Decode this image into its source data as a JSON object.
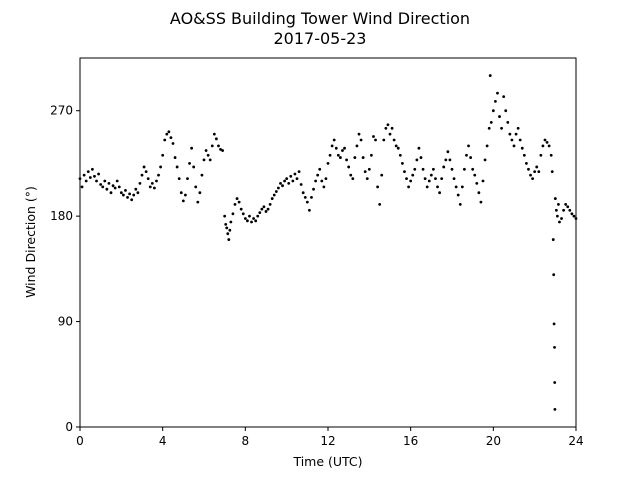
{
  "chart_data": {
    "type": "scatter",
    "title": "AO&SS Building Tower Wind Direction",
    "subtitle": "2017-05-23",
    "xlabel": "Time (UTC)",
    "ylabel": "Wind Direction (°)",
    "xlim": [
      0,
      24
    ],
    "ylim": [
      0,
      315
    ],
    "xticks": [
      0,
      4,
      8,
      12,
      16,
      20,
      24
    ],
    "yticks": [
      0,
      90,
      180,
      270
    ],
    "grid": false,
    "marker_color": "#000000",
    "series": [
      {
        "points": [
          [
            0.0,
            212
          ],
          [
            0.1,
            205
          ],
          [
            0.2,
            215
          ],
          [
            0.3,
            210
          ],
          [
            0.4,
            218
          ],
          [
            0.5,
            213
          ],
          [
            0.6,
            220
          ],
          [
            0.7,
            214
          ],
          [
            0.8,
            210
          ],
          [
            0.9,
            216
          ],
          [
            1.0,
            207
          ],
          [
            1.1,
            205
          ],
          [
            1.2,
            210
          ],
          [
            1.3,
            203
          ],
          [
            1.4,
            208
          ],
          [
            1.5,
            200
          ],
          [
            1.6,
            206
          ],
          [
            1.7,
            204
          ],
          [
            1.8,
            210
          ],
          [
            1.9,
            205
          ],
          [
            2.0,
            200
          ],
          [
            2.1,
            198
          ],
          [
            2.2,
            202
          ],
          [
            2.3,
            196
          ],
          [
            2.4,
            199
          ],
          [
            2.5,
            194
          ],
          [
            2.6,
            198
          ],
          [
            2.7,
            203
          ],
          [
            2.8,
            200
          ],
          [
            2.9,
            208
          ],
          [
            3.0,
            215
          ],
          [
            3.1,
            222
          ],
          [
            3.2,
            218
          ],
          [
            3.3,
            212
          ],
          [
            3.4,
            205
          ],
          [
            3.5,
            208
          ],
          [
            3.6,
            204
          ],
          [
            3.7,
            210
          ],
          [
            3.8,
            215
          ],
          [
            3.9,
            222
          ],
          [
            4.0,
            232
          ],
          [
            4.1,
            245
          ],
          [
            4.2,
            250
          ],
          [
            4.3,
            252
          ],
          [
            4.4,
            247
          ],
          [
            4.5,
            242
          ],
          [
            4.6,
            230
          ],
          [
            4.7,
            222
          ],
          [
            4.8,
            212
          ],
          [
            4.9,
            200
          ],
          [
            5.0,
            193
          ],
          [
            5.1,
            198
          ],
          [
            5.2,
            212
          ],
          [
            5.3,
            225
          ],
          [
            5.4,
            238
          ],
          [
            5.5,
            222
          ],
          [
            5.6,
            205
          ],
          [
            5.7,
            192
          ],
          [
            5.8,
            200
          ],
          [
            5.9,
            215
          ],
          [
            6.0,
            228
          ],
          [
            6.1,
            236
          ],
          [
            6.2,
            232
          ],
          [
            6.3,
            228
          ],
          [
            6.4,
            240
          ],
          [
            6.5,
            250
          ],
          [
            6.6,
            246
          ],
          [
            6.7,
            240
          ],
          [
            6.8,
            237
          ],
          [
            6.9,
            236
          ],
          [
            7.0,
            180
          ],
          [
            7.05,
            173
          ],
          [
            7.1,
            170
          ],
          [
            7.15,
            165
          ],
          [
            7.2,
            160
          ],
          [
            7.25,
            168
          ],
          [
            7.3,
            175
          ],
          [
            7.4,
            182
          ],
          [
            7.5,
            190
          ],
          [
            7.6,
            195
          ],
          [
            7.7,
            192
          ],
          [
            7.8,
            186
          ],
          [
            7.9,
            182
          ],
          [
            8.0,
            178
          ],
          [
            8.1,
            176
          ],
          [
            8.2,
            180
          ],
          [
            8.3,
            175
          ],
          [
            8.4,
            178
          ],
          [
            8.5,
            176
          ],
          [
            8.6,
            180
          ],
          [
            8.7,
            183
          ],
          [
            8.8,
            186
          ],
          [
            8.9,
            188
          ],
          [
            9.0,
            184
          ],
          [
            9.1,
            186
          ],
          [
            9.2,
            190
          ],
          [
            9.3,
            195
          ],
          [
            9.4,
            198
          ],
          [
            9.5,
            201
          ],
          [
            9.6,
            204
          ],
          [
            9.7,
            208
          ],
          [
            9.8,
            206
          ],
          [
            9.9,
            210
          ],
          [
            10.0,
            212
          ],
          [
            10.1,
            208
          ],
          [
            10.2,
            214
          ],
          [
            10.3,
            210
          ],
          [
            10.4,
            216
          ],
          [
            10.5,
            212
          ],
          [
            10.6,
            218
          ],
          [
            10.7,
            207
          ],
          [
            10.8,
            200
          ],
          [
            10.9,
            196
          ],
          [
            11.0,
            192
          ],
          [
            11.1,
            185
          ],
          [
            11.2,
            196
          ],
          [
            11.3,
            203
          ],
          [
            11.4,
            210
          ],
          [
            11.5,
            215
          ],
          [
            11.6,
            220
          ],
          [
            11.7,
            210
          ],
          [
            11.8,
            205
          ],
          [
            11.9,
            212
          ],
          [
            12.0,
            225
          ],
          [
            12.1,
            232
          ],
          [
            12.2,
            240
          ],
          [
            12.3,
            245
          ],
          [
            12.4,
            238
          ],
          [
            12.5,
            232
          ],
          [
            12.6,
            230
          ],
          [
            12.7,
            236
          ],
          [
            12.8,
            238
          ],
          [
            12.9,
            228
          ],
          [
            13.0,
            222
          ],
          [
            13.1,
            215
          ],
          [
            13.2,
            212
          ],
          [
            13.3,
            230
          ],
          [
            13.4,
            240
          ],
          [
            13.5,
            250
          ],
          [
            13.6,
            245
          ],
          [
            13.7,
            230
          ],
          [
            13.8,
            218
          ],
          [
            13.9,
            212
          ],
          [
            14.0,
            220
          ],
          [
            14.1,
            232
          ],
          [
            14.2,
            248
          ],
          [
            14.3,
            245
          ],
          [
            14.4,
            205
          ],
          [
            14.5,
            190
          ],
          [
            14.6,
            215
          ],
          [
            14.7,
            245
          ],
          [
            14.8,
            255
          ],
          [
            14.9,
            258
          ],
          [
            15.0,
            250
          ],
          [
            15.1,
            255
          ],
          [
            15.2,
            245
          ],
          [
            15.3,
            240
          ],
          [
            15.4,
            238
          ],
          [
            15.5,
            232
          ],
          [
            15.6,
            225
          ],
          [
            15.7,
            218
          ],
          [
            15.8,
            212
          ],
          [
            15.9,
            205
          ],
          [
            16.0,
            210
          ],
          [
            16.1,
            215
          ],
          [
            16.2,
            220
          ],
          [
            16.3,
            228
          ],
          [
            16.4,
            238
          ],
          [
            16.5,
            230
          ],
          [
            16.6,
            220
          ],
          [
            16.7,
            212
          ],
          [
            16.8,
            205
          ],
          [
            16.9,
            210
          ],
          [
            17.0,
            215
          ],
          [
            17.1,
            220
          ],
          [
            17.2,
            212
          ],
          [
            17.3,
            205
          ],
          [
            17.4,
            200
          ],
          [
            17.5,
            212
          ],
          [
            17.6,
            222
          ],
          [
            17.7,
            228
          ],
          [
            17.8,
            235
          ],
          [
            17.9,
            228
          ],
          [
            18.0,
            220
          ],
          [
            18.1,
            212
          ],
          [
            18.2,
            205
          ],
          [
            18.3,
            198
          ],
          [
            18.4,
            190
          ],
          [
            18.5,
            205
          ],
          [
            18.6,
            220
          ],
          [
            18.7,
            232
          ],
          [
            18.8,
            240
          ],
          [
            18.9,
            230
          ],
          [
            19.0,
            220
          ],
          [
            19.1,
            215
          ],
          [
            19.2,
            208
          ],
          [
            19.3,
            200
          ],
          [
            19.4,
            192
          ],
          [
            19.5,
            210
          ],
          [
            19.6,
            228
          ],
          [
            19.7,
            240
          ],
          [
            19.8,
            255
          ],
          [
            19.85,
            300
          ],
          [
            19.9,
            260
          ],
          [
            20.0,
            270
          ],
          [
            20.1,
            278
          ],
          [
            20.2,
            285
          ],
          [
            20.3,
            265
          ],
          [
            20.4,
            255
          ],
          [
            20.5,
            282
          ],
          [
            20.6,
            270
          ],
          [
            20.7,
            260
          ],
          [
            20.8,
            250
          ],
          [
            20.9,
            245
          ],
          [
            21.0,
            240
          ],
          [
            21.1,
            250
          ],
          [
            21.2,
            255
          ],
          [
            21.3,
            245
          ],
          [
            21.4,
            238
          ],
          [
            21.5,
            232
          ],
          [
            21.6,
            225
          ],
          [
            21.7,
            220
          ],
          [
            21.8,
            215
          ],
          [
            21.9,
            212
          ],
          [
            22.0,
            218
          ],
          [
            22.1,
            222
          ],
          [
            22.2,
            218
          ],
          [
            22.3,
            232
          ],
          [
            22.4,
            240
          ],
          [
            22.5,
            245
          ],
          [
            22.6,
            243
          ],
          [
            22.7,
            240
          ],
          [
            22.8,
            232
          ],
          [
            22.85,
            218
          ],
          [
            22.9,
            160
          ],
          [
            22.92,
            130
          ],
          [
            22.94,
            88
          ],
          [
            22.96,
            68
          ],
          [
            22.97,
            38
          ],
          [
            22.98,
            15
          ],
          [
            23.0,
            195
          ],
          [
            23.05,
            185
          ],
          [
            23.1,
            180
          ],
          [
            23.15,
            190
          ],
          [
            23.2,
            175
          ],
          [
            23.3,
            178
          ],
          [
            23.4,
            185
          ],
          [
            23.5,
            190
          ],
          [
            23.6,
            188
          ],
          [
            23.7,
            185
          ],
          [
            23.8,
            182
          ],
          [
            23.9,
            180
          ],
          [
            24.0,
            178
          ]
        ]
      }
    ]
  }
}
